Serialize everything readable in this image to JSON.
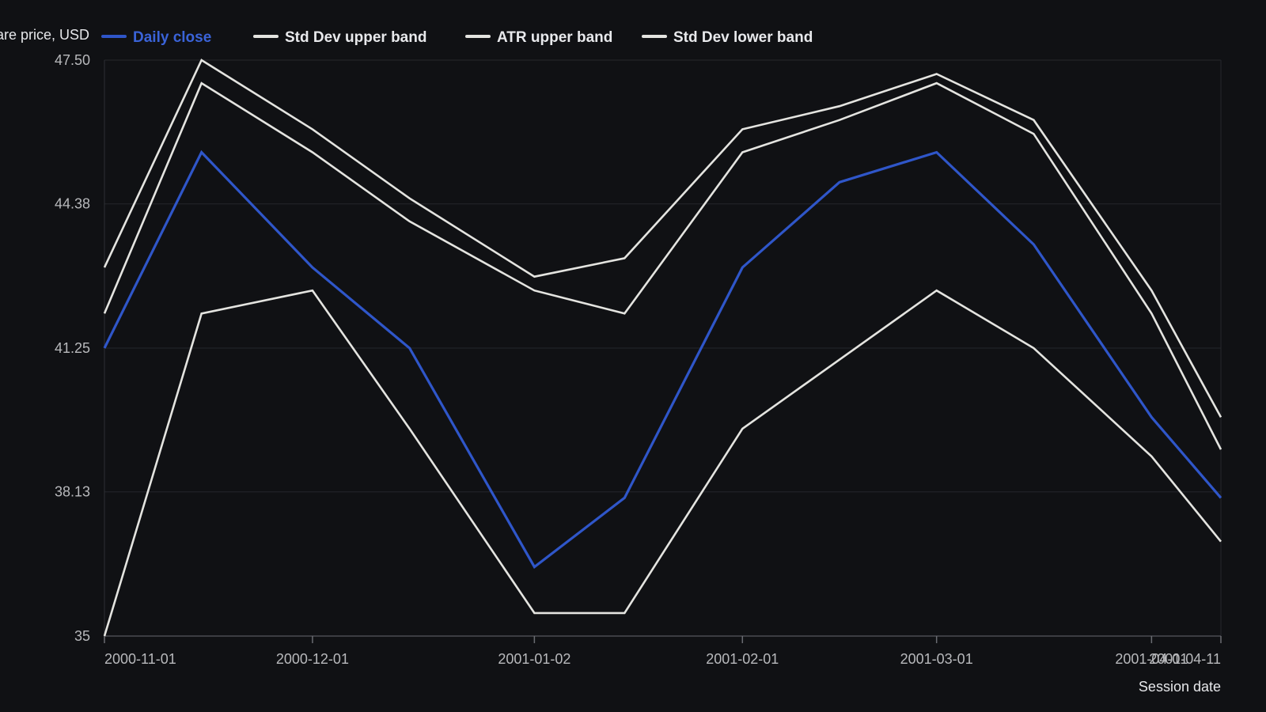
{
  "chart_data": {
    "type": "line",
    "title": "",
    "xlabel": "Session date",
    "ylabel": "Share price, USD",
    "ylim": [
      35,
      47.5
    ],
    "xlim": [
      "2000-11-01",
      "2001-04-11"
    ],
    "y_ticks": [
      "35",
      "38.13",
      "41.25",
      "44.38",
      "47.50"
    ],
    "x_ticks": [
      "2000-11-01",
      "2000-12-01",
      "2001-01-02",
      "2001-02-01",
      "2001-03-01",
      "2001-04-01",
      "2001-04-11"
    ],
    "grid": "horizontal",
    "legend_position": "top",
    "x": [
      "2000-11-01",
      "2000-11-15",
      "2000-12-01",
      "2000-12-15",
      "2001-01-02",
      "2001-01-15",
      "2001-02-01",
      "2001-02-15",
      "2001-03-01",
      "2001-03-15",
      "2001-04-01",
      "2001-04-11"
    ],
    "series": [
      {
        "name": "Daily close",
        "color": "#2f56c9",
        "values": [
          41.25,
          45.5,
          43.0,
          41.25,
          36.5,
          38.0,
          43.0,
          44.85,
          45.5,
          43.5,
          39.75,
          38.0
        ]
      },
      {
        "name": "Std Dev upper band",
        "color": "#e4e4e0",
        "values": [
          43.0,
          47.5,
          46.0,
          44.5,
          42.8,
          43.2,
          46.0,
          46.5,
          47.2,
          46.2,
          42.5,
          39.75
        ]
      },
      {
        "name": "ATR upper band",
        "color": "#e4e4e0",
        "values": [
          42.0,
          47.0,
          45.5,
          44.0,
          42.5,
          42.0,
          45.5,
          46.2,
          47.0,
          45.9,
          42.0,
          39.05
        ]
      },
      {
        "name": "Std Dev lower band",
        "color": "#e4e4e0",
        "values": [
          35.0,
          42.0,
          42.5,
          39.5,
          35.5,
          35.5,
          39.5,
          41.0,
          42.5,
          41.25,
          38.9,
          37.05
        ]
      }
    ]
  }
}
